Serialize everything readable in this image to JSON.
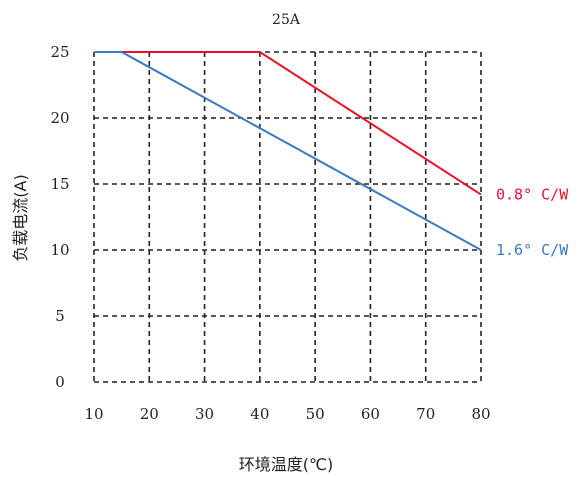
{
  "chart_data": {
    "type": "line",
    "title": "25A",
    "xlabel": "环境温度(℃)",
    "ylabel": "负载电流(A)",
    "xlim": [
      10,
      80
    ],
    "ylim": [
      0,
      25
    ],
    "x_ticks": [
      "10",
      "20",
      "30",
      "40",
      "50",
      "60",
      "70",
      "80"
    ],
    "y_ticks": [
      "0",
      "5",
      "10",
      "15",
      "20",
      "25"
    ],
    "grid": true,
    "grid_style": "dashed",
    "legend_placement": "right-end labels",
    "series": [
      {
        "name": "0.8° C/W",
        "color": "#e8112d",
        "points": [
          [
            10,
            25
          ],
          [
            40,
            25
          ],
          [
            80,
            14.2
          ]
        ]
      },
      {
        "name": "1.6° C/W",
        "color": "#3a7bbf",
        "points": [
          [
            10,
            25
          ],
          [
            15,
            25
          ],
          [
            80,
            10
          ]
        ]
      }
    ]
  }
}
